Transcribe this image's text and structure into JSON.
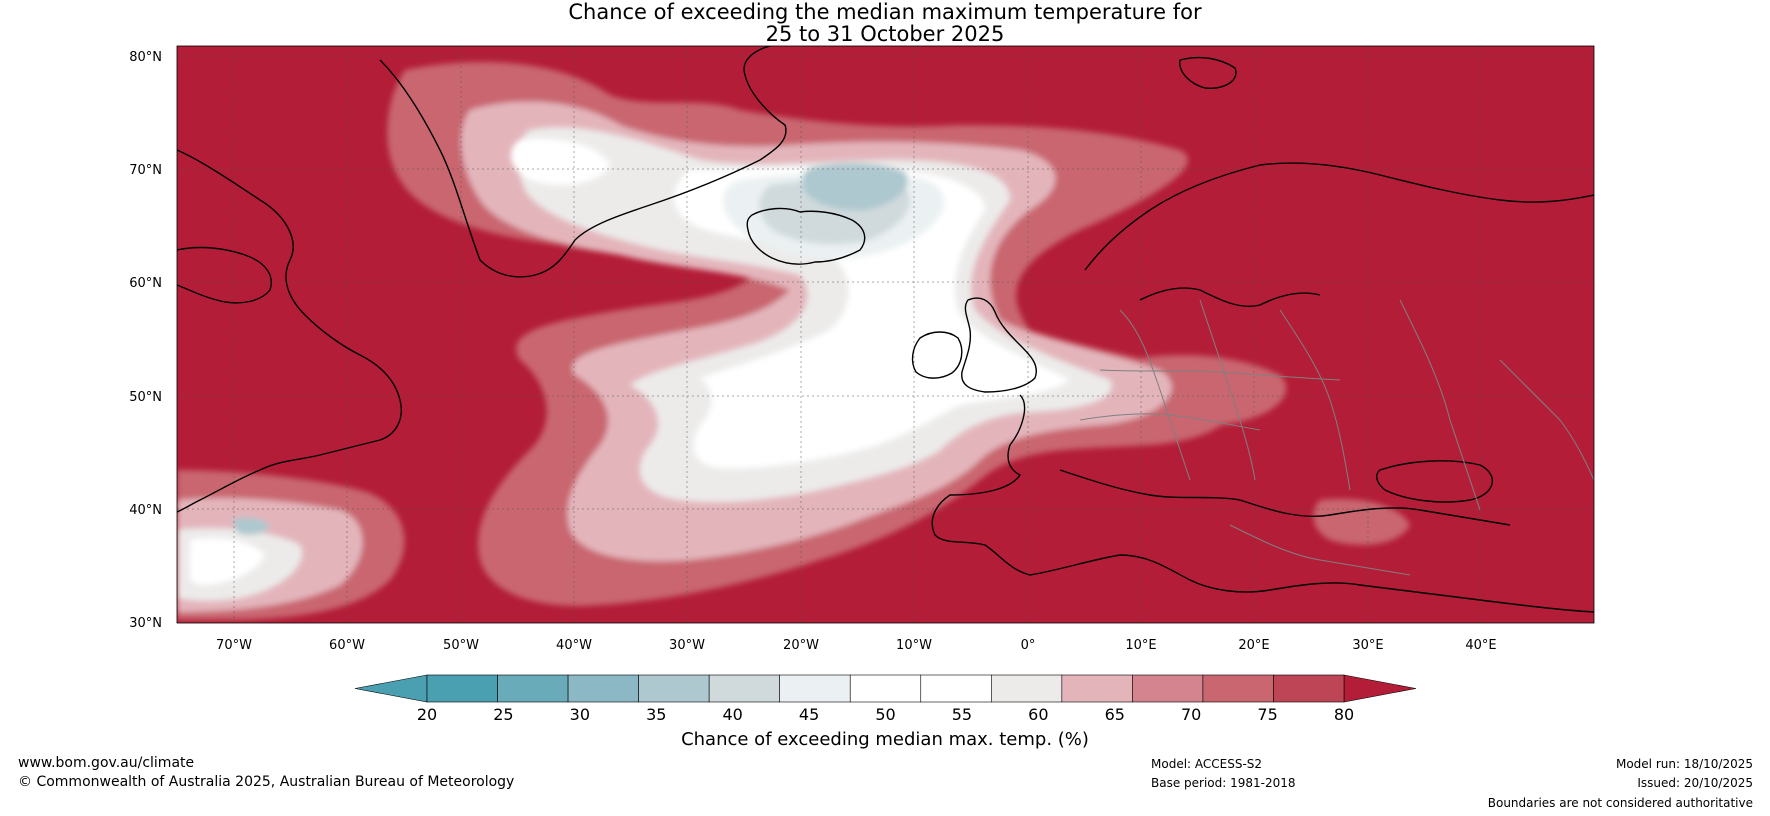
{
  "title": {
    "line1": "Chance of exceeding the median maximum temperature for",
    "line2": "25 to 31 October 2025"
  },
  "map": {
    "lat_ticks": [
      "80°N",
      "70°N",
      "60°N",
      "50°N",
      "40°N",
      "30°N"
    ],
    "lon_ticks": [
      "70°W",
      "60°W",
      "50°W",
      "40°W",
      "30°W",
      "20°W",
      "10°W",
      "0°",
      "10°E",
      "20°E",
      "30°E",
      "40°E"
    ]
  },
  "colorbar": {
    "ticks": [
      "20",
      "25",
      "30",
      "35",
      "40",
      "45",
      "50",
      "55",
      "60",
      "65",
      "70",
      "75",
      "80"
    ],
    "colors": [
      "#4a9fb0",
      "#6aabb9",
      "#8bb8c4",
      "#adc8cf",
      "#d0dadd",
      "#ebf1f2",
      "#ffffff",
      "#ffffff",
      "#ecebea",
      "#e3b5bb",
      "#d4848e",
      "#c96670",
      "#be4555"
    ],
    "under_color": "#4a9fb0",
    "over_color": "#b31d37",
    "label": "Chance of exceeding median max. temp. (%)"
  },
  "footer": {
    "website": "www.bom.gov.au/climate",
    "copyright": "© Commonwealth of Australia 2025, Australian Bureau of Meteorology",
    "model": "Model: ACCESS-S2",
    "base_period": "Base period: 1981-2018",
    "model_run": "Model run: 18/10/2025",
    "issued": "Issued: 20/10/2025",
    "disclaimer": "Boundaries are not considered authoritative"
  }
}
